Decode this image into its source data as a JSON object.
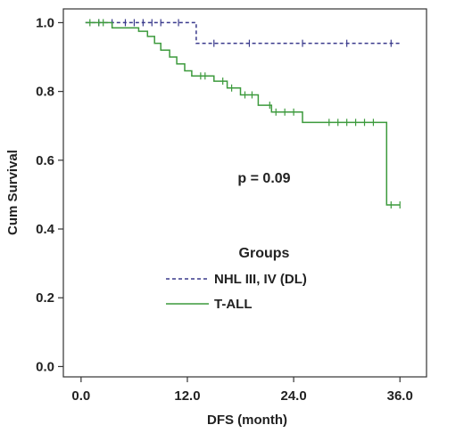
{
  "chart_data": {
    "type": "line",
    "title": "",
    "xlabel": "DFS (month)",
    "ylabel": "Cum Survival",
    "xlim": [
      -2,
      39
    ],
    "ylim": [
      -0.03,
      1.04
    ],
    "x_ticks": [
      0,
      12,
      24,
      36
    ],
    "x_tick_labels": [
      "0.0",
      "12.0",
      "24.0",
      "36.0"
    ],
    "y_ticks": [
      0.0,
      0.2,
      0.4,
      0.6,
      0.8,
      1.0
    ],
    "y_tick_labels": [
      "0.0",
      "0.2",
      "0.4",
      "0.6",
      "0.8",
      "1.0"
    ],
    "grid": false,
    "legend_position": "bottom-center",
    "legend_title": "Groups",
    "annotation": "p = 0.09",
    "series": [
      {
        "name": "NHL III, IV (DL)",
        "color": "#3a3a8c",
        "style": "dashed",
        "steps": [
          [
            0.5,
            1.0
          ],
          [
            13,
            1.0
          ],
          [
            13,
            0.94
          ],
          [
            36,
            0.94
          ]
        ],
        "censored": [
          [
            2,
            1.0
          ],
          [
            3.5,
            1.0
          ],
          [
            5,
            1.0
          ],
          [
            6,
            1.0
          ],
          [
            7,
            1.0
          ],
          [
            8,
            1.0
          ],
          [
            9,
            1.0
          ],
          [
            11,
            1.0
          ],
          [
            15,
            0.94
          ],
          [
            19,
            0.94
          ],
          [
            25,
            0.94
          ],
          [
            30,
            0.94
          ],
          [
            35,
            0.94
          ]
        ]
      },
      {
        "name": "T-ALL",
        "color": "#3c9a3c",
        "style": "solid",
        "steps": [
          [
            0.5,
            1.0
          ],
          [
            3.5,
            1.0
          ],
          [
            3.5,
            0.985
          ],
          [
            6.5,
            0.985
          ],
          [
            6.5,
            0.975
          ],
          [
            7.5,
            0.975
          ],
          [
            7.5,
            0.96
          ],
          [
            8.3,
            0.96
          ],
          [
            8.3,
            0.94
          ],
          [
            9,
            0.94
          ],
          [
            9,
            0.92
          ],
          [
            10,
            0.92
          ],
          [
            10,
            0.9
          ],
          [
            10.8,
            0.9
          ],
          [
            10.8,
            0.88
          ],
          [
            11.7,
            0.88
          ],
          [
            11.7,
            0.86
          ],
          [
            12.5,
            0.86
          ],
          [
            12.5,
            0.845
          ],
          [
            15,
            0.845
          ],
          [
            15,
            0.83
          ],
          [
            16.5,
            0.83
          ],
          [
            16.5,
            0.81
          ],
          [
            18,
            0.81
          ],
          [
            18,
            0.79
          ],
          [
            20,
            0.79
          ],
          [
            20,
            0.76
          ],
          [
            21.5,
            0.76
          ],
          [
            21.5,
            0.74
          ],
          [
            25,
            0.74
          ],
          [
            25,
            0.71
          ],
          [
            34.5,
            0.71
          ],
          [
            34.5,
            0.47
          ],
          [
            36,
            0.47
          ]
        ],
        "censored": [
          [
            1,
            1.0
          ],
          [
            2,
            1.0
          ],
          [
            2.5,
            1.0
          ],
          [
            13.5,
            0.845
          ],
          [
            14,
            0.845
          ],
          [
            16,
            0.83
          ],
          [
            17,
            0.81
          ],
          [
            18.5,
            0.79
          ],
          [
            19.3,
            0.79
          ],
          [
            21.3,
            0.76
          ],
          [
            22,
            0.74
          ],
          [
            23,
            0.74
          ],
          [
            24,
            0.74
          ],
          [
            28,
            0.71
          ],
          [
            29,
            0.71
          ],
          [
            30,
            0.71
          ],
          [
            31,
            0.71
          ],
          [
            32,
            0.71
          ],
          [
            33,
            0.71
          ],
          [
            35,
            0.47
          ],
          [
            36,
            0.47
          ]
        ]
      }
    ]
  }
}
